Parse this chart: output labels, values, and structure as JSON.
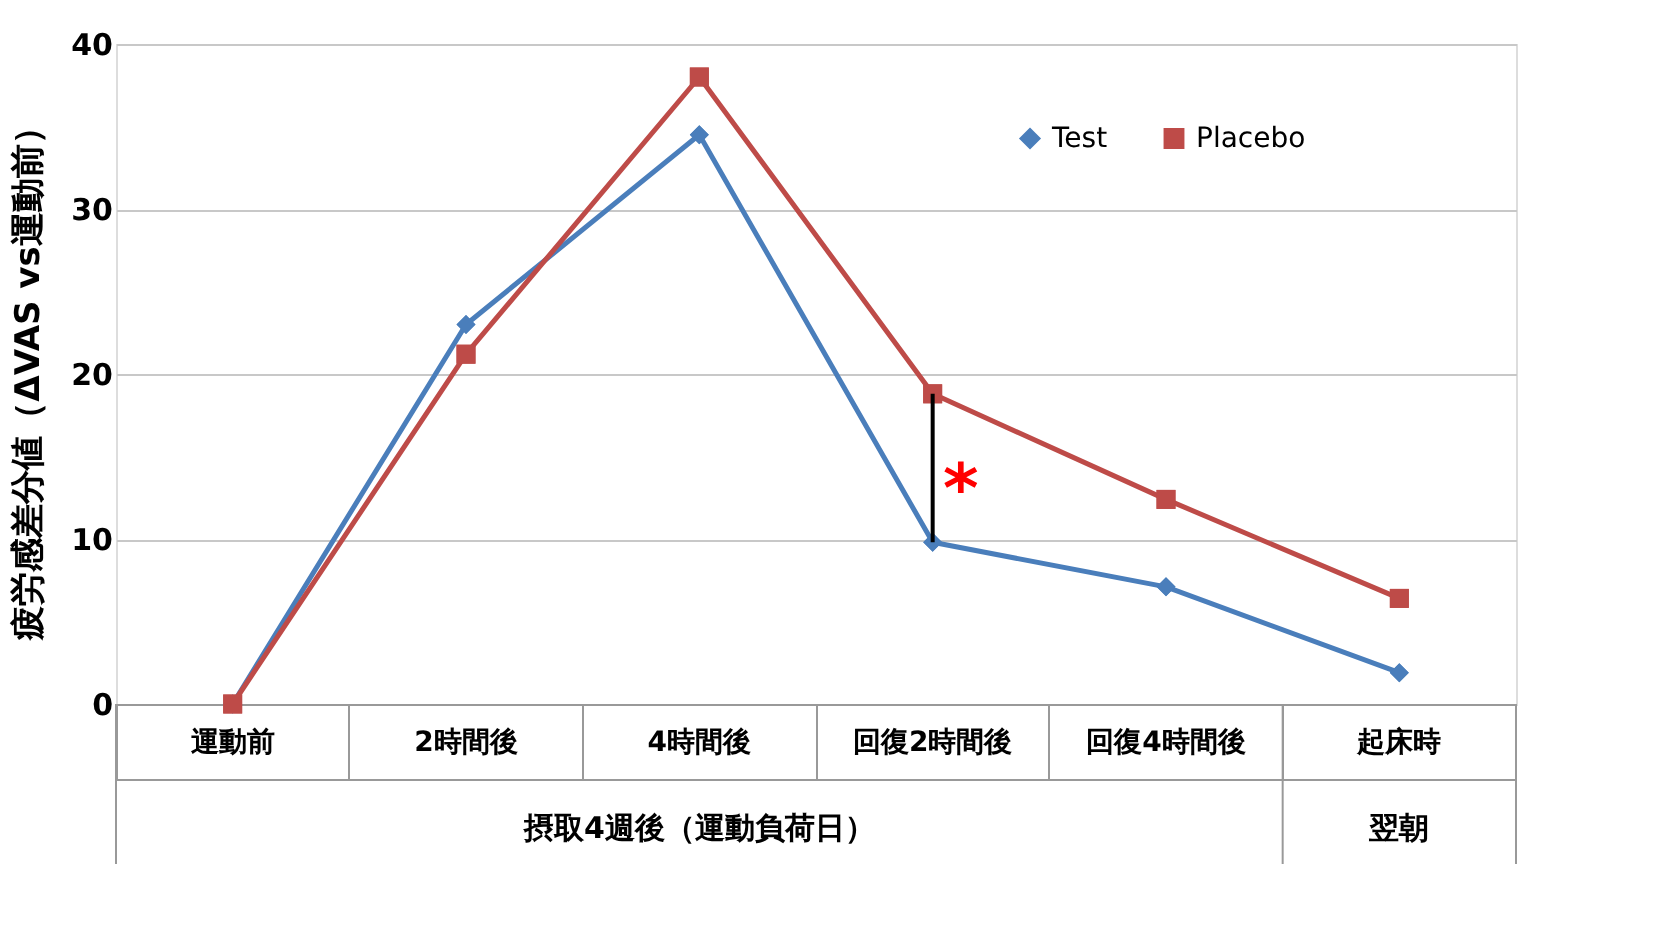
{
  "chart_data": {
    "type": "line",
    "ylabel": "疲労感差分値（ΔVAS vs運動前）",
    "categories": [
      "運動前",
      "2時間後",
      "4時間後",
      "回復2時間後",
      "回復4時間後",
      "起床時"
    ],
    "series": [
      {
        "name": "Test",
        "color": "#4a7ebb",
        "marker": "diamond",
        "values": [
          0,
          23,
          34.5,
          9.8,
          7.1,
          1.9
        ]
      },
      {
        "name": "Placebo",
        "color": "#be4b48",
        "marker": "square",
        "values": [
          0,
          21.2,
          38,
          18.8,
          12.4,
          6.4
        ]
      }
    ],
    "ylim": [
      0,
      40
    ],
    "yticks": [
      0,
      10,
      20,
      30,
      40
    ],
    "grid": "y",
    "legend": "top right",
    "line_style": "solid",
    "annotations": [
      "摂取4週後（運動負荷日）",
      "翌朝",
      "*"
    ]
  }
}
